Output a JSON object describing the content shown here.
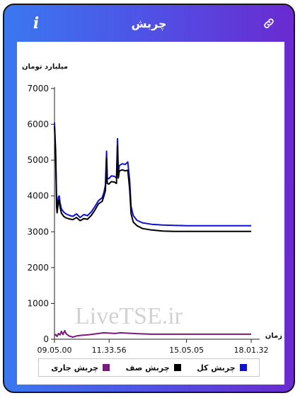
{
  "header": {
    "title": "چربش",
    "info_icon": "info-icon",
    "link_icon": "link-icon"
  },
  "watermark": "LiveTSE.ir",
  "chart_data": {
    "type": "line",
    "ylabel": "میلیارد تومان",
    "xlabel": "زمان",
    "ylim": [
      0,
      7000
    ],
    "yticks": [
      0,
      1000,
      2000,
      3000,
      4000,
      5000,
      6000,
      7000
    ],
    "ytick_labels": [
      "0",
      "1000",
      "2000",
      "3000",
      "4000",
      "5000",
      "6000",
      "7000"
    ],
    "xrange": [
      "09.05.00",
      "18.01.32"
    ],
    "xticks": [
      {
        "t": "09.05.00",
        "label": "09.05.00"
      },
      {
        "t": "11.33.56",
        "label": "11.33.56"
      },
      {
        "t": "15.05.05",
        "label": "15.05.05"
      },
      {
        "t": "18.01.32",
        "label": "18.01.32"
      }
    ],
    "grid": false,
    "legend_position": "bottom",
    "series": [
      {
        "name": "چربش کل",
        "color": "#1010d0",
        "points": [
          [
            "09.05.00",
            6050
          ],
          [
            "09.06.12",
            5750
          ],
          [
            "09.08.00",
            5300
          ],
          [
            "09.09.30",
            4600
          ],
          [
            "09.10.48",
            3900
          ],
          [
            "09.12.06",
            3650
          ],
          [
            "09.14.00",
            3850
          ],
          [
            "09.16.00",
            3980
          ],
          [
            "09.18.00",
            4000
          ],
          [
            "09.20.00",
            3820
          ],
          [
            "09.24.00",
            3640
          ],
          [
            "09.30.00",
            3550
          ],
          [
            "09.36.00",
            3500
          ],
          [
            "09.45.00",
            3460
          ],
          [
            "09.55.00",
            3430
          ],
          [
            "10.05.00",
            3500
          ],
          [
            "10.15.00",
            3400
          ],
          [
            "10.25.00",
            3480
          ],
          [
            "10.35.00",
            3450
          ],
          [
            "10.45.00",
            3550
          ],
          [
            "10.55.00",
            3700
          ],
          [
            "11.05.00",
            3870
          ],
          [
            "11.15.00",
            3950
          ],
          [
            "11.20.00",
            4100
          ],
          [
            "11.24.00",
            4300
          ],
          [
            "11.27.00",
            5250
          ],
          [
            "11.29.00",
            4500
          ],
          [
            "11.33.00",
            4480
          ],
          [
            "11.40.00",
            4560
          ],
          [
            "11.48.00",
            4550
          ],
          [
            "11.54.00",
            4500
          ],
          [
            "11.57.00",
            5600
          ],
          [
            "11.59.00",
            4650
          ],
          [
            "12.02.00",
            4850
          ],
          [
            "12.10.00",
            4900
          ],
          [
            "12.18.00",
            4880
          ],
          [
            "12.25.00",
            4950
          ],
          [
            "12.30.00",
            4450
          ],
          [
            "12.34.00",
            3700
          ],
          [
            "12.40.00",
            3450
          ],
          [
            "12.50.00",
            3320
          ],
          [
            "13.05.00",
            3250
          ],
          [
            "13.30.00",
            3210
          ],
          [
            "14.00.00",
            3190
          ],
          [
            "14.30.00",
            3180
          ],
          [
            "15.05.00",
            3170
          ],
          [
            "16.00.00",
            3170
          ],
          [
            "17.00.00",
            3170
          ],
          [
            "18.01.32",
            3170
          ]
        ]
      },
      {
        "name": "چربش صف",
        "color": "#000000",
        "points": [
          [
            "09.05.00",
            5950
          ],
          [
            "09.06.12",
            5650
          ],
          [
            "09.08.00",
            5150
          ],
          [
            "09.09.30",
            4400
          ],
          [
            "09.10.48",
            3700
          ],
          [
            "09.12.06",
            3530
          ],
          [
            "09.14.00",
            3700
          ],
          [
            "09.16.00",
            3860
          ],
          [
            "09.18.00",
            3880
          ],
          [
            "09.20.00",
            3700
          ],
          [
            "09.24.00",
            3520
          ],
          [
            "09.30.00",
            3430
          ],
          [
            "09.36.00",
            3390
          ],
          [
            "09.45.00",
            3360
          ],
          [
            "09.55.00",
            3340
          ],
          [
            "10.05.00",
            3400
          ],
          [
            "10.15.00",
            3310
          ],
          [
            "10.25.00",
            3370
          ],
          [
            "10.35.00",
            3350
          ],
          [
            "10.45.00",
            3450
          ],
          [
            "10.55.00",
            3600
          ],
          [
            "11.05.00",
            3780
          ],
          [
            "11.15.00",
            3850
          ],
          [
            "11.20.00",
            4000
          ],
          [
            "11.24.00",
            4150
          ],
          [
            "11.27.00",
            5050
          ],
          [
            "11.29.00",
            4350
          ],
          [
            "11.33.00",
            4330
          ],
          [
            "11.40.00",
            4400
          ],
          [
            "11.48.00",
            4390
          ],
          [
            "11.54.00",
            4350
          ],
          [
            "11.57.00",
            5400
          ],
          [
            "11.59.00",
            4500
          ],
          [
            "12.02.00",
            4700
          ],
          [
            "12.10.00",
            4730
          ],
          [
            "12.18.00",
            4700
          ],
          [
            "12.25.00",
            4720
          ],
          [
            "12.30.00",
            4200
          ],
          [
            "12.34.00",
            3500
          ],
          [
            "12.40.00",
            3270
          ],
          [
            "12.50.00",
            3170
          ],
          [
            "13.05.00",
            3090
          ],
          [
            "13.30.00",
            3050
          ],
          [
            "14.00.00",
            3020
          ],
          [
            "14.30.00",
            3010
          ],
          [
            "15.05.00",
            3010
          ],
          [
            "16.00.00",
            3010
          ],
          [
            "17.00.00",
            3010
          ],
          [
            "18.01.32",
            3010
          ]
        ]
      },
      {
        "name": "چربش جاری",
        "color": "#7a1a7a",
        "points": [
          [
            "09.05.00",
            100
          ],
          [
            "09.08.00",
            130
          ],
          [
            "09.12.00",
            80
          ],
          [
            "09.16.00",
            160
          ],
          [
            "09.20.00",
            120
          ],
          [
            "09.24.00",
            220
          ],
          [
            "09.28.00",
            130
          ],
          [
            "09.33.00",
            240
          ],
          [
            "09.37.00",
            150
          ],
          [
            "09.45.00",
            90
          ],
          [
            "09.55.00",
            60
          ],
          [
            "10.05.00",
            90
          ],
          [
            "10.20.00",
            110
          ],
          [
            "10.35.00",
            120
          ],
          [
            "10.50.00",
            140
          ],
          [
            "11.05.00",
            160
          ],
          [
            "11.20.00",
            180
          ],
          [
            "11.35.00",
            170
          ],
          [
            "11.50.00",
            160
          ],
          [
            "12.05.00",
            180
          ],
          [
            "12.20.00",
            170
          ],
          [
            "12.40.00",
            160
          ],
          [
            "13.00.00",
            150
          ],
          [
            "13.30.00",
            140
          ],
          [
            "14.00.00",
            140
          ],
          [
            "15.00.00",
            140
          ],
          [
            "16.00.00",
            140
          ],
          [
            "17.00.00",
            140
          ],
          [
            "18.01.32",
            140
          ]
        ]
      }
    ]
  },
  "legend": {
    "items": [
      {
        "label": "چربش جاری",
        "color": "#7a1a7a"
      },
      {
        "label": "چربش صف",
        "color": "#000000"
      },
      {
        "label": "چربش کل",
        "color": "#1010d0"
      }
    ]
  }
}
